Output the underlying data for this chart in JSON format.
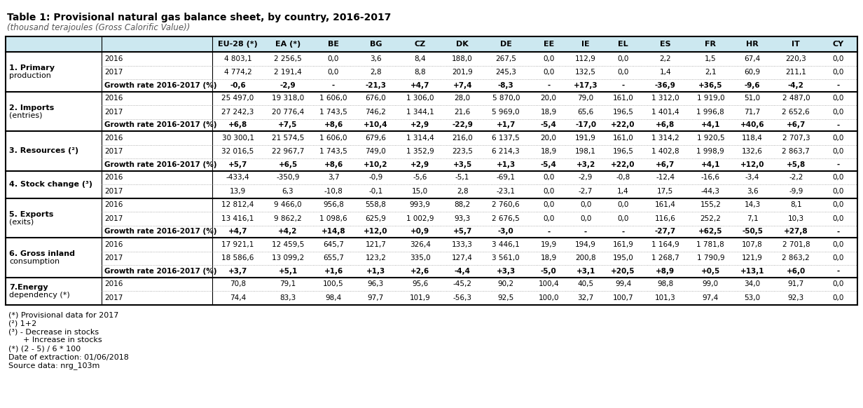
{
  "title": "Table 1: Provisional natural gas balance sheet, by country, 2016-2017",
  "subtitle": "(thousand terajoules (Gross Calorific Value))",
  "header_labels": [
    "EU-28 (*)",
    "EA (*)",
    "BE",
    "BG",
    "CZ",
    "DK",
    "DE",
    "EE",
    "IE",
    "EL",
    "ES",
    "FR",
    "HR",
    "IT",
    "CY"
  ],
  "header_bg": "#cce8f0",
  "rows": [
    {
      "label": "1. Primary\n   production",
      "year": "2016",
      "vals": [
        "4 803,1",
        "2 256,5",
        "0,0",
        "3,6",
        "8,4",
        "188,0",
        "267,5",
        "0,0",
        "112,9",
        "0,0",
        "2,2",
        "1,5",
        "67,4",
        "220,3",
        "0,0"
      ],
      "is_growth": false
    },
    {
      "label": "",
      "year": "2017",
      "vals": [
        "4 774,2",
        "2 191,4",
        "0,0",
        "2,8",
        "8,8",
        "201,9",
        "245,3",
        "0,0",
        "132,5",
        "0,0",
        "1,4",
        "2,1",
        "60,9",
        "211,1",
        "0,0"
      ],
      "is_growth": false
    },
    {
      "label": "",
      "year": "Growth rate 2016-2017 (%)",
      "vals": [
        "-0,6",
        "-2,9",
        "-",
        "-21,3",
        "+4,7",
        "+7,4",
        "-8,3",
        "-",
        "+17,3",
        "-",
        "-36,9",
        "+36,5",
        "-9,6",
        "-4,2",
        "-"
      ],
      "is_growth": true
    },
    {
      "label": "2. Imports\n   (entries)",
      "year": "2016",
      "vals": [
        "25 497,0",
        "19 318,0",
        "1 606,0",
        "676,0",
        "1 306,0",
        "28,0",
        "5 870,0",
        "20,0",
        "79,0",
        "161,0",
        "1 312,0",
        "1 919,0",
        "51,0",
        "2 487,0",
        "0,0"
      ],
      "is_growth": false
    },
    {
      "label": "",
      "year": "2017",
      "vals": [
        "27 242,3",
        "20 776,4",
        "1 743,5",
        "746,2",
        "1 344,1",
        "21,6",
        "5 969,0",
        "18,9",
        "65,6",
        "196,5",
        "1 401,4",
        "1 996,8",
        "71,7",
        "2 652,6",
        "0,0"
      ],
      "is_growth": false
    },
    {
      "label": "",
      "year": "Growth rate 2016-2017 (%)",
      "vals": [
        "+6,8",
        "+7,5",
        "+8,6",
        "+10,4",
        "+2,9",
        "-22,9",
        "+1,7",
        "-5,4",
        "-17,0",
        "+22,0",
        "+6,8",
        "+4,1",
        "+40,6",
        "+6,7",
        "-"
      ],
      "is_growth": true
    },
    {
      "label": "3. Resources (²)",
      "year": "2016",
      "vals": [
        "30 300,1",
        "21 574,5",
        "1 606,0",
        "679,6",
        "1 314,4",
        "216,0",
        "6 137,5",
        "20,0",
        "191,9",
        "161,0",
        "1 314,2",
        "1 920,5",
        "118,4",
        "2 707,3",
        "0,0"
      ],
      "is_growth": false
    },
    {
      "label": "",
      "year": "2017",
      "vals": [
        "32 016,5",
        "22 967,7",
        "1 743,5",
        "749,0",
        "1 352,9",
        "223,5",
        "6 214,3",
        "18,9",
        "198,1",
        "196,5",
        "1 402,8",
        "1 998,9",
        "132,6",
        "2 863,7",
        "0,0"
      ],
      "is_growth": false
    },
    {
      "label": "",
      "year": "Growth rate 2016-2017 (%)",
      "vals": [
        "+5,7",
        "+6,5",
        "+8,6",
        "+10,2",
        "+2,9",
        "+3,5",
        "+1,3",
        "-5,4",
        "+3,2",
        "+22,0",
        "+6,7",
        "+4,1",
        "+12,0",
        "+5,8",
        "-"
      ],
      "is_growth": true
    },
    {
      "label": "4. Stock change (³)",
      "year": "2016",
      "vals": [
        "-433,4",
        "-350,9",
        "3,7",
        "-0,9",
        "-5,6",
        "-5,1",
        "-69,1",
        "0,0",
        "-2,9",
        "-0,8",
        "-12,4",
        "-16,6",
        "-3,4",
        "-2,2",
        "0,0"
      ],
      "is_growth": false
    },
    {
      "label": "",
      "year": "2017",
      "vals": [
        "13,9",
        "6,3",
        "-10,8",
        "-0,1",
        "15,0",
        "2,8",
        "-23,1",
        "0,0",
        "-2,7",
        "1,4",
        "17,5",
        "-44,3",
        "3,6",
        "-9,9",
        "0,0"
      ],
      "is_growth": false
    },
    {
      "label": "5. Exports\n   (exits)",
      "year": "2016",
      "vals": [
        "12 812,4",
        "9 466,0",
        "956,8",
        "558,8",
        "993,9",
        "88,2",
        "2 760,6",
        "0,0",
        "0,0",
        "0,0",
        "161,4",
        "155,2",
        "14,3",
        "8,1",
        "0,0"
      ],
      "is_growth": false
    },
    {
      "label": "",
      "year": "2017",
      "vals": [
        "13 416,1",
        "9 862,2",
        "1 098,6",
        "625,9",
        "1 002,9",
        "93,3",
        "2 676,5",
        "0,0",
        "0,0",
        "0,0",
        "116,6",
        "252,2",
        "7,1",
        "10,3",
        "0,0"
      ],
      "is_growth": false
    },
    {
      "label": "",
      "year": "Growth rate 2016-2017 (%)",
      "vals": [
        "+4,7",
        "+4,2",
        "+14,8",
        "+12,0",
        "+0,9",
        "+5,7",
        "-3,0",
        "-",
        "-",
        "-",
        "-27,7",
        "+62,5",
        "-50,5",
        "+27,8",
        "-"
      ],
      "is_growth": true
    },
    {
      "label": "6. Gross inland\n   consumption",
      "year": "2016",
      "vals": [
        "17 921,1",
        "12 459,5",
        "645,7",
        "121,7",
        "326,4",
        "133,3",
        "3 446,1",
        "19,9",
        "194,9",
        "161,9",
        "1 164,9",
        "1 781,8",
        "107,8",
        "2 701,8",
        "0,0"
      ],
      "is_growth": false
    },
    {
      "label": "",
      "year": "2017",
      "vals": [
        "18 586,6",
        "13 099,2",
        "655,7",
        "123,2",
        "335,0",
        "127,4",
        "3 561,0",
        "18,9",
        "200,8",
        "195,0",
        "1 268,7",
        "1 790,9",
        "121,9",
        "2 863,2",
        "0,0"
      ],
      "is_growth": false
    },
    {
      "label": "",
      "year": "Growth rate 2016-2017 (%)",
      "vals": [
        "+3,7",
        "+5,1",
        "+1,6",
        "+1,3",
        "+2,6",
        "-4,4",
        "+3,3",
        "-5,0",
        "+3,1",
        "+20,5",
        "+8,9",
        "+0,5",
        "+13,1",
        "+6,0",
        "-"
      ],
      "is_growth": true
    },
    {
      "label": "7.Energy\n   dependency (*)",
      "year": "2016",
      "vals": [
        "70,8",
        "79,1",
        "100,5",
        "96,3",
        "95,6",
        "-45,2",
        "90,2",
        "100,4",
        "40,5",
        "99,4",
        "98,8",
        "99,0",
        "34,0",
        "91,7",
        "0,0"
      ],
      "is_growth": false
    },
    {
      "label": "",
      "year": "2017",
      "vals": [
        "74,4",
        "83,3",
        "98,4",
        "97,7",
        "101,9",
        "-56,3",
        "92,5",
        "100,0",
        "32,7",
        "100,7",
        "101,3",
        "97,4",
        "53,0",
        "92,3",
        "0,0"
      ],
      "is_growth": false
    }
  ],
  "section_borders_after": [
    2,
    5,
    8,
    10,
    13,
    16
  ],
  "footnotes": [
    "(*) Provisional data for 2017",
    "(²) 1+2",
    "(³) - Decrease in stocks",
    "      + Increase in stocks",
    "(*) (2 - 5) / 6 * 100",
    "Date of extraction: 01/06/2018",
    "Source data: nrg_103m"
  ],
  "sections": [
    {
      "rows": [
        0,
        1,
        2
      ],
      "line1": "1. Primary",
      "line2": "   production"
    },
    {
      "rows": [
        3,
        4,
        5
      ],
      "line1": "2. Imports",
      "line2": "   (entries)"
    },
    {
      "rows": [
        6,
        7,
        8
      ],
      "line1": "3. Resources (²)",
      "line2": ""
    },
    {
      "rows": [
        9,
        10
      ],
      "line1": "4. Stock change (³)",
      "line2": ""
    },
    {
      "rows": [
        11,
        12,
        13
      ],
      "line1": "5. Exports",
      "line2": "   (exits)"
    },
    {
      "rows": [
        14,
        15,
        16
      ],
      "line1": "6. Gross inland",
      "line2": "   consumption"
    },
    {
      "rows": [
        17,
        18
      ],
      "line1": "7.Energy",
      "line2": "   dependency (*)"
    }
  ]
}
